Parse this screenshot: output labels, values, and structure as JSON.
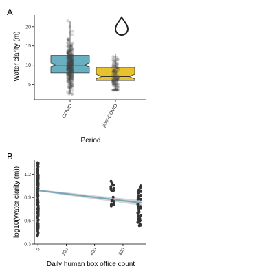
{
  "chart_data": [
    {
      "panel": "A",
      "type": "boxplot",
      "xlabel": "Period",
      "ylabel": "Water clarity (m)",
      "categories": [
        "COVID",
        "post-COVID"
      ],
      "ylim": [
        1,
        23
      ],
      "yticks": [
        5,
        10,
        15,
        20
      ],
      "series": [
        {
          "category": "COVID",
          "color": "#6aafc0",
          "q1": 8.0,
          "median": 10.0,
          "q3": 12.5,
          "notch_low": 9.6,
          "notch_high": 10.5,
          "whisker_low": 2.5,
          "whisker_high": 21.5
        },
        {
          "category": "post-COVID",
          "color": "#e8c22c",
          "q1": 6.0,
          "median": 7.0,
          "q3": 9.4,
          "notch_low": 6.4,
          "notch_high": 7.6,
          "whisker_low": 3.5,
          "whisker_high": 13.0
        }
      ],
      "annotation_icon": "water-drop-icon",
      "grid": false
    },
    {
      "panel": "B",
      "type": "scatter",
      "xlabel": "Daily human box office count",
      "ylabel": "log10(Water clarity (m))",
      "xlim": [
        -25,
        760
      ],
      "ylim": [
        0.3,
        1.38
      ],
      "xticks": [
        0,
        200,
        400,
        600
      ],
      "yticks": [
        0.3,
        0.6,
        0.9,
        1.2
      ],
      "clusters": [
        {
          "x": 0,
          "y_min": 0.4,
          "y_max": 1.35
        },
        {
          "x": 525,
          "y_min": 0.74,
          "y_max": 1.13
        },
        {
          "x": 715,
          "y_min": 0.52,
          "y_max": 1.07
        }
      ],
      "fit_line": {
        "x": [
          0,
          730
        ],
        "y": [
          0.99,
          0.83
        ],
        "color": "#7aa8b8"
      },
      "grid": false
    }
  ]
}
